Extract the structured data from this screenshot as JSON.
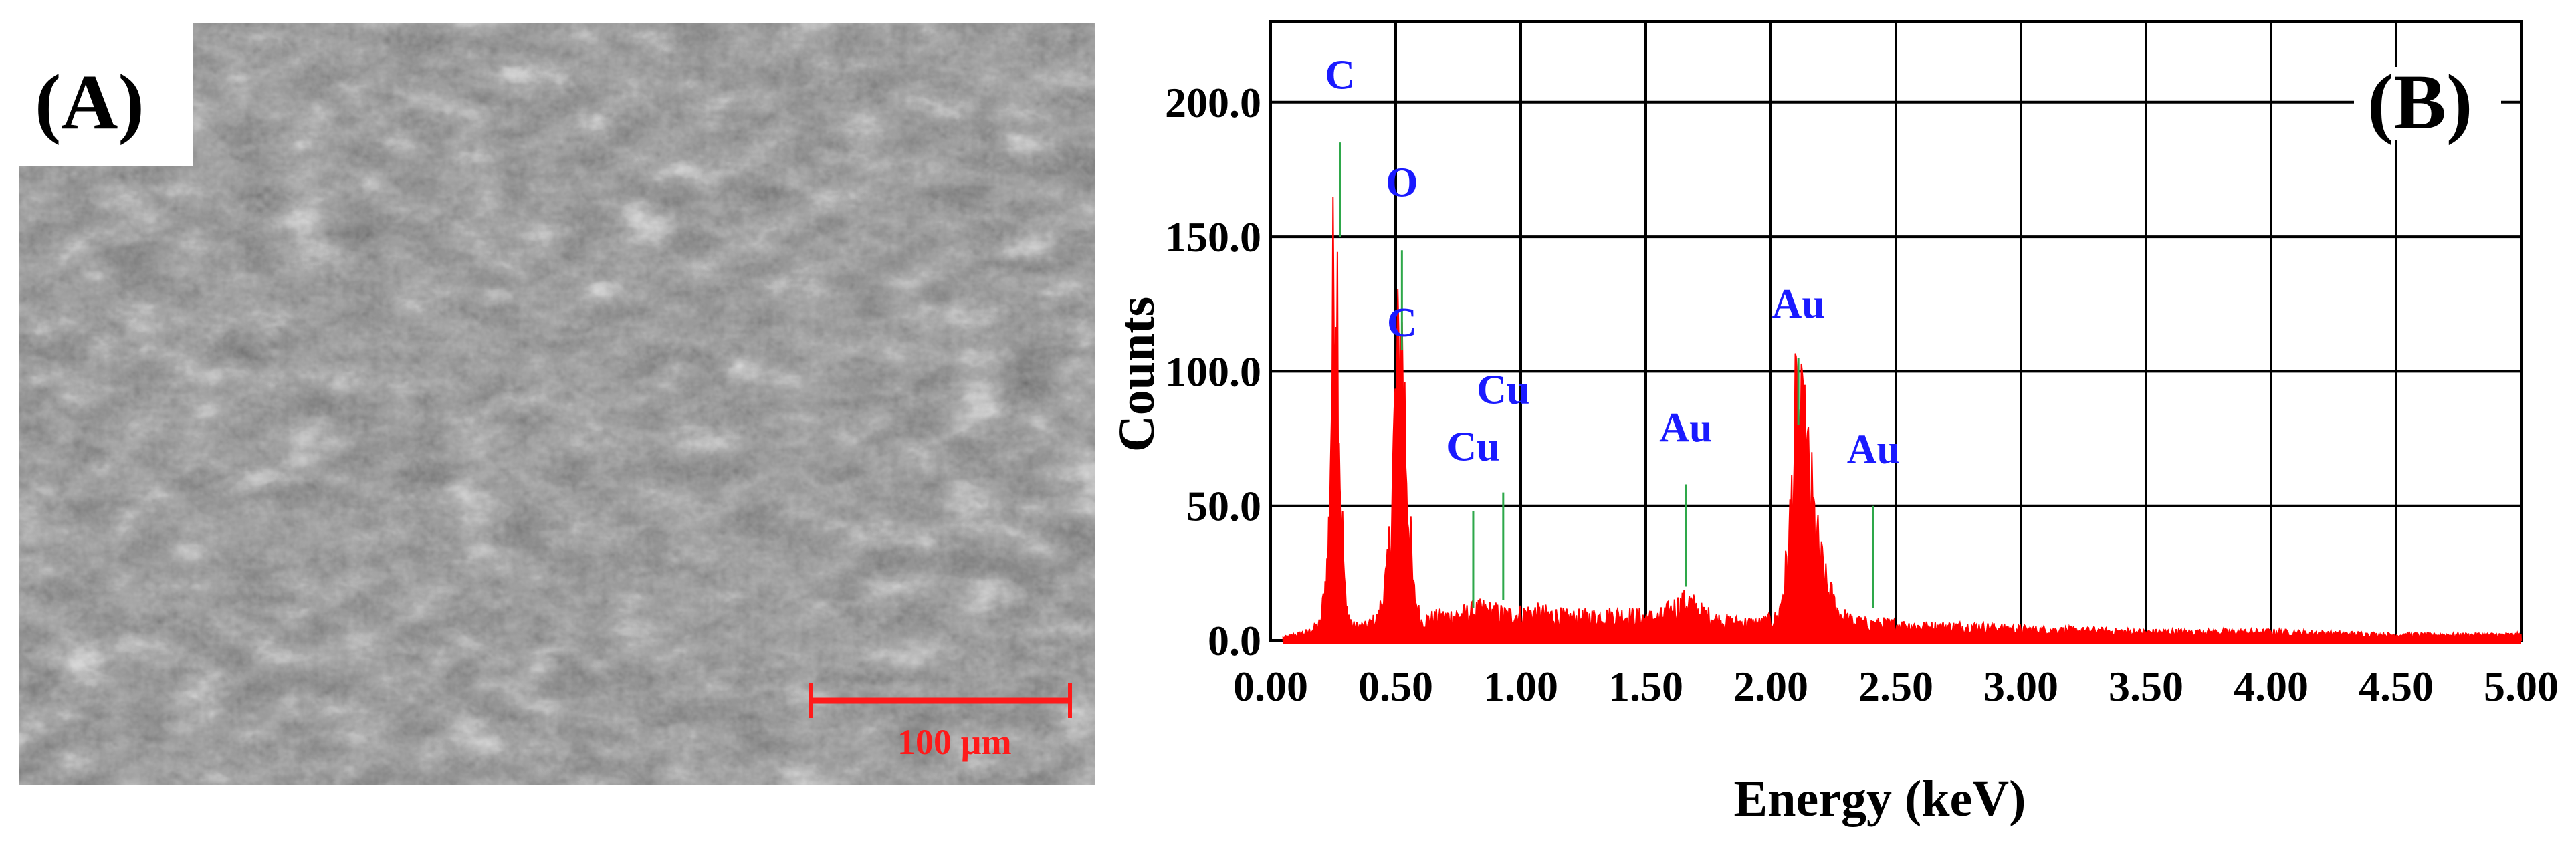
{
  "panel_a": {
    "label": "(A)",
    "scale_bar_text": "100 µm",
    "colors": {
      "scale_bar": "#ff1a1a",
      "micrograph_base": "#2e2e2e",
      "flake": "#e6e6e6"
    }
  },
  "chart_data": {
    "type": "line",
    "panel_label": "(B)",
    "title": "",
    "xlabel": "Energy (keV)",
    "ylabel": "Counts",
    "xlim": [
      0,
      5
    ],
    "ylim": [
      0,
      230
    ],
    "grid": true,
    "x_ticks": [
      0.0,
      0.5,
      1.0,
      1.5,
      2.0,
      2.5,
      3.0,
      3.5,
      4.0,
      4.5,
      5.0
    ],
    "x_tick_labels": [
      "0.00",
      "0.50",
      "1.00",
      "1.50",
      "2.00",
      "2.50",
      "3.00",
      "3.50",
      "4.00",
      "4.50",
      "5.00"
    ],
    "y_ticks": [
      0,
      50,
      100,
      150,
      200
    ],
    "y_tick_labels": [
      "0.0",
      "50.0",
      "100.0",
      "150.0",
      "200.0"
    ],
    "series": [
      {
        "color": "#ff0000",
        "x": [
          0.05,
          0.15,
          0.2,
          0.23,
          0.25,
          0.26,
          0.27,
          0.28,
          0.3,
          0.33,
          0.38,
          0.43,
          0.47,
          0.5,
          0.52,
          0.53,
          0.55,
          0.57,
          0.6,
          0.65,
          0.75,
          0.85,
          0.95,
          1.05,
          1.2,
          1.4,
          1.55,
          1.62,
          1.67,
          1.72,
          1.8,
          1.95,
          2.03,
          2.07,
          2.1,
          2.12,
          2.14,
          2.16,
          2.19,
          2.22,
          2.27,
          2.32,
          2.38,
          2.45,
          2.6,
          2.8,
          3.0,
          3.5,
          4.0,
          4.5,
          5.0
        ],
        "y": [
          1,
          3,
          6,
          30,
          120,
          150,
          115,
          55,
          12,
          5,
          5,
          8,
          25,
          85,
          108,
          98,
          50,
          18,
          7,
          8,
          9,
          11,
          9,
          10,
          8,
          9,
          8,
          12,
          14,
          10,
          7,
          6,
          8,
          30,
          78,
          72,
          66,
          52,
          32,
          20,
          10,
          7,
          6,
          6,
          5,
          5,
          4,
          3,
          3,
          2,
          2
        ]
      }
    ],
    "peak_labels": [
      {
        "text": "C",
        "x": 0.277,
        "line_top": 185,
        "line_bottom": 150,
        "label_y": 205
      },
      {
        "text": "O",
        "x": 0.525,
        "line_top": 145,
        "line_bottom": 108,
        "label_y": 165
      },
      {
        "text": "C",
        "x": 0.525,
        "label_y": 113
      },
      {
        "text": "Cu",
        "x": 0.93,
        "line_top": 55,
        "line_bottom": 15,
        "label_y": 88
      },
      {
        "text": "Cu",
        "x": 0.81,
        "line_top": 48,
        "line_bottom": 12,
        "label_y": 67
      },
      {
        "text": "Au",
        "x": 1.66,
        "line_top": 58,
        "line_bottom": 20,
        "label_y": 74
      },
      {
        "text": "Au",
        "x": 2.11,
        "line_top": 105,
        "line_bottom": 80,
        "label_y": 120
      },
      {
        "text": "Au",
        "x": 2.41,
        "line_top": 50,
        "line_bottom": 12,
        "label_y": 66
      }
    ],
    "colors": {
      "spectrum": "#ff0000",
      "label": "#1a1aff",
      "marker_line": "#2ea84a",
      "grid": "#000000"
    }
  }
}
